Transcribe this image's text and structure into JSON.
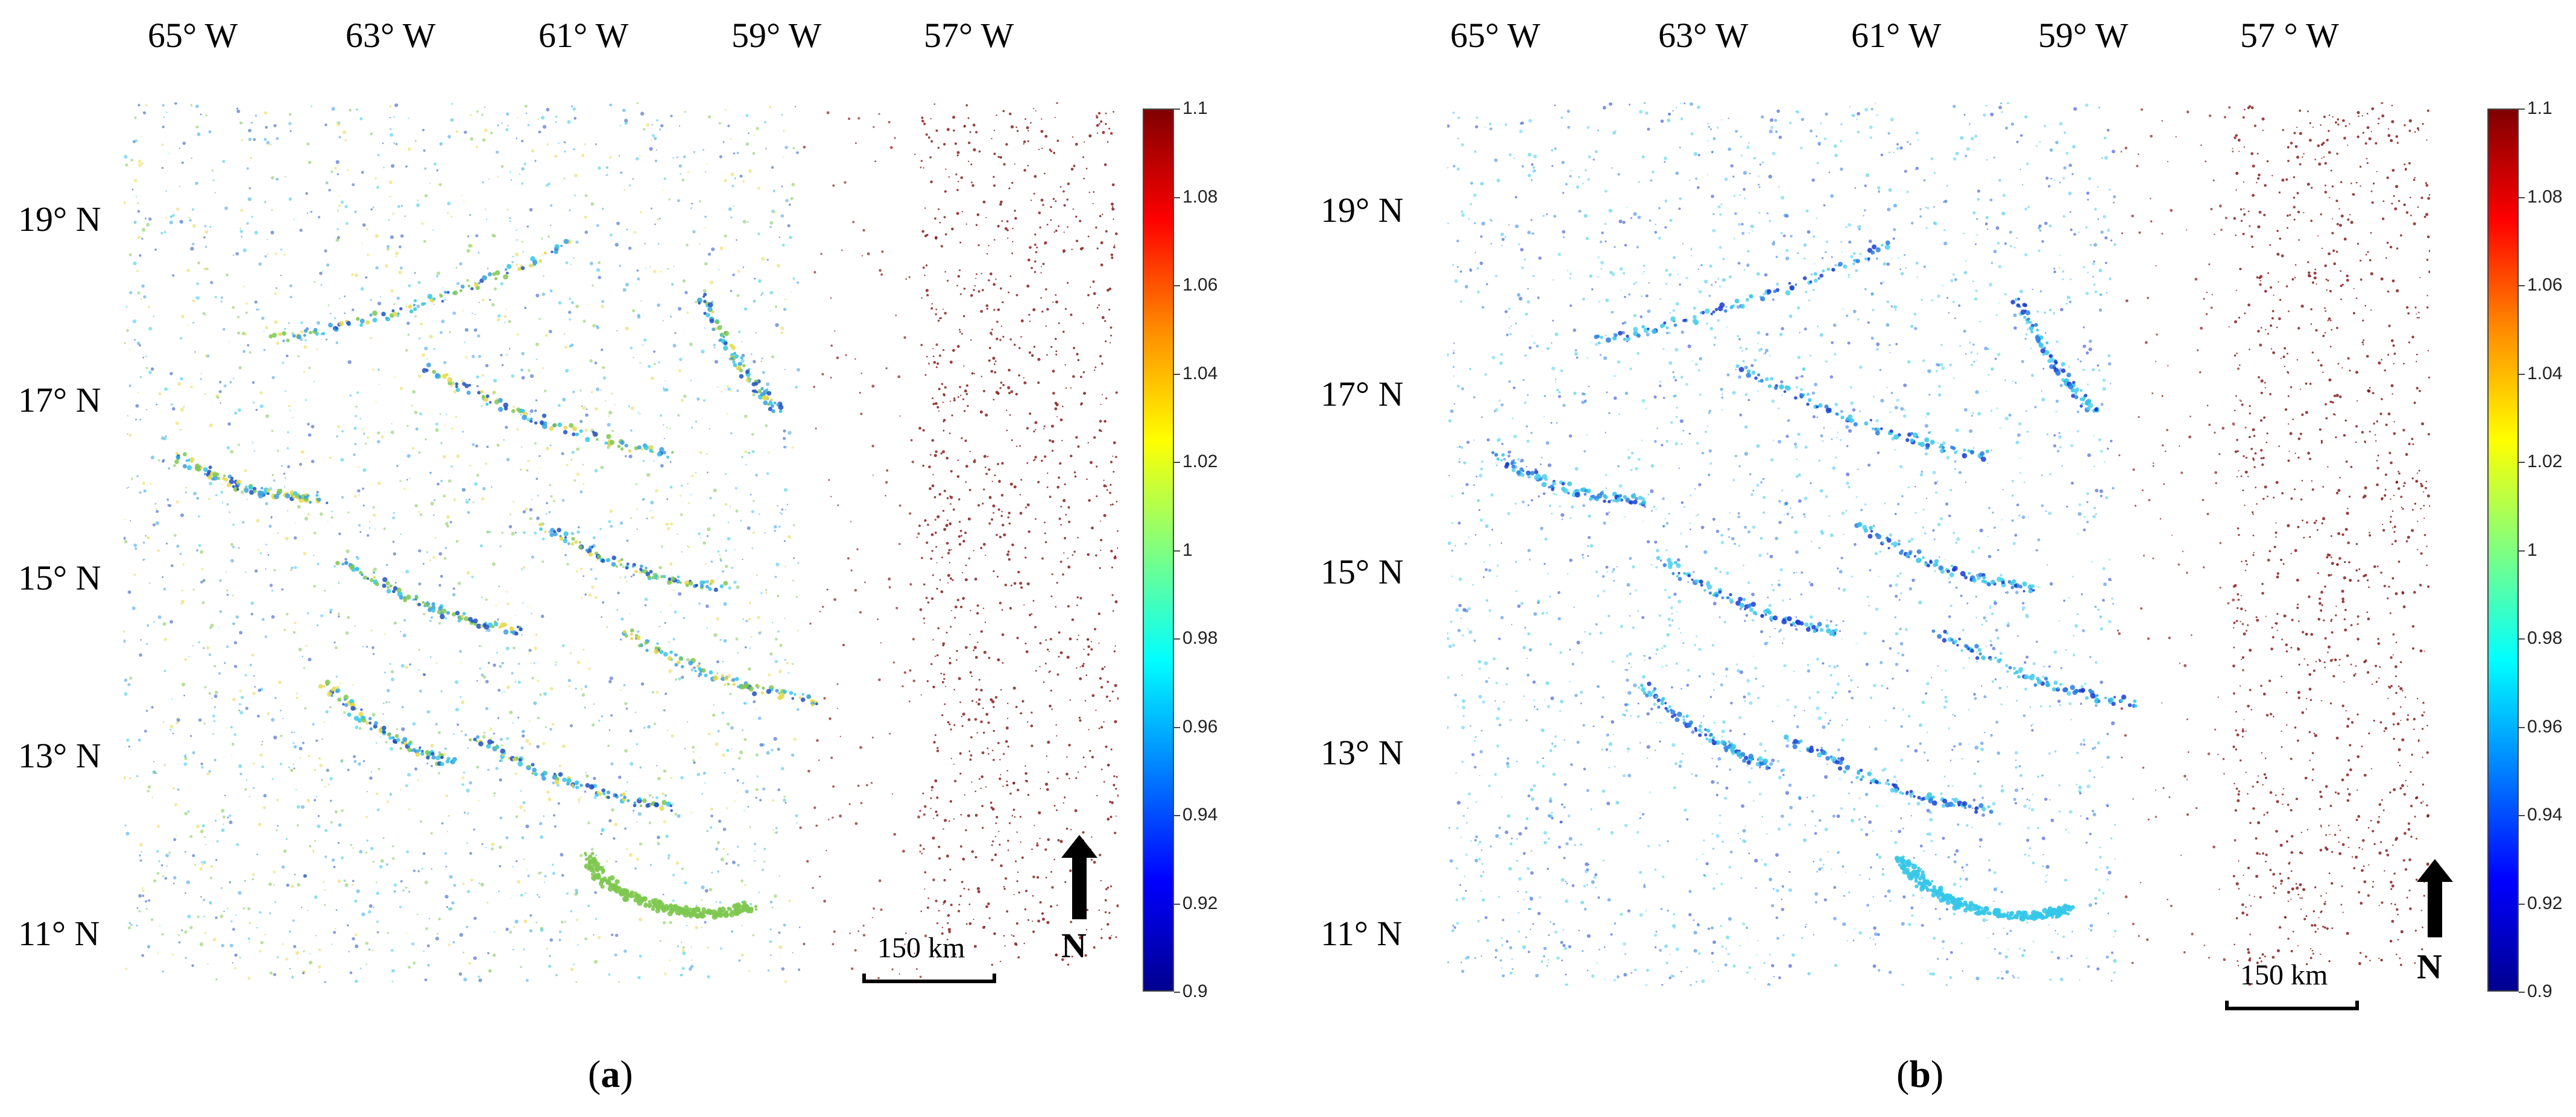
{
  "panels": [
    {
      "id": "a",
      "caption": "(a)",
      "caption_letter": "a",
      "lon_labels": [
        "65° W",
        "63° W",
        "61° W",
        "59° W",
        "57° W"
      ],
      "lat_labels": [
        "19° N",
        "17° N",
        "15° N",
        "13° N",
        "11° N"
      ],
      "scale_label": "150 km",
      "north_label": "N",
      "colorbar_ticks": [
        "1.1",
        "1.08",
        "1.06",
        "1.04",
        "1.02",
        "1",
        "0.98",
        "0.96",
        "0.94",
        "0.92",
        "0.9"
      ],
      "dominant_color": "#7ec850"
    },
    {
      "id": "b",
      "caption": "(b)",
      "caption_letter": "b",
      "lon_labels": [
        "65° W",
        "63° W",
        "61° W",
        "59° W",
        "57 ° W"
      ],
      "lat_labels": [
        "19° N",
        "17° N",
        "15° N",
        "13° N",
        "11° N"
      ],
      "scale_label": "150 km",
      "north_label": "N",
      "colorbar_ticks": [
        "1.1",
        "1.08",
        "1.06",
        "1.04",
        "1.02",
        "1",
        "0.98",
        "0.96",
        "0.94",
        "0.92",
        "0.9"
      ],
      "dominant_color": "#35c6e8"
    }
  ],
  "colorbar": {
    "min": 0.9,
    "max": 1.1,
    "colormap": "jet",
    "colors": [
      "#7f0000",
      "#ff0000",
      "#ff8c00",
      "#ffff00",
      "#80ff80",
      "#00ffff",
      "#0080ff",
      "#0000ff",
      "#00008f"
    ]
  }
}
